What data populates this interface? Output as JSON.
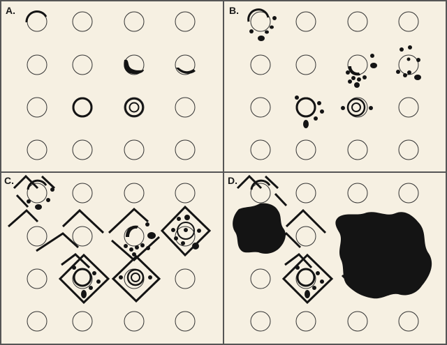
{
  "colors": {
    "background": "#f6f0e2",
    "ink": "#141414",
    "divider": "#555555"
  },
  "panels": [
    {
      "id": "A",
      "label": "A."
    },
    {
      "id": "B",
      "label": "B."
    },
    {
      "id": "C",
      "label": "C."
    },
    {
      "id": "D",
      "label": "D."
    }
  ]
}
